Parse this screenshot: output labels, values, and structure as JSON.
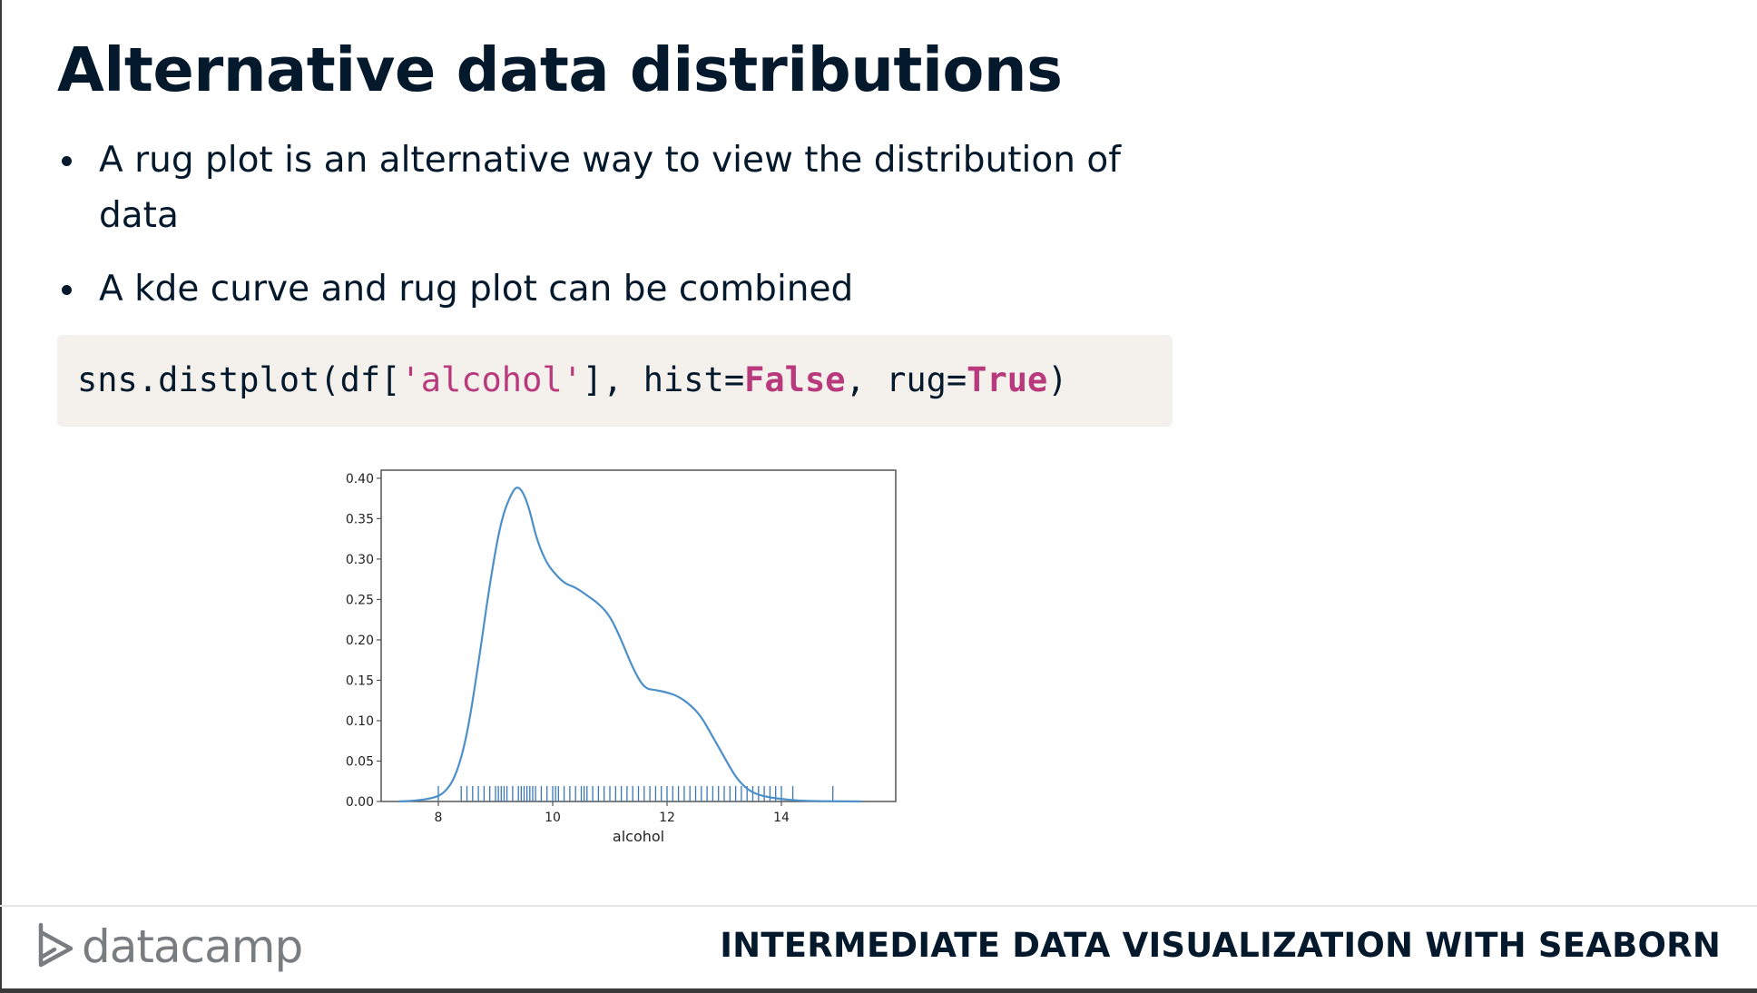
{
  "slide": {
    "title": "Alternative data distributions",
    "bullets": [
      "A rug plot is an alternative way to view the distribution of data",
      "A kde curve and rug plot can be combined"
    ]
  },
  "code": {
    "prefix": "sns.distplot(df[",
    "string": "'alcohol'",
    "middle": "], hist=",
    "kw1": "False",
    "middle2": ", rug=",
    "kw2": "True",
    "suffix": ")"
  },
  "footer": {
    "logo_text": "datacamp",
    "course_title": "INTERMEDIATE DATA VISUALIZATION WITH SEABORN"
  },
  "colors": {
    "accent_code": "#b83a7d",
    "curve": "#4c8fc9",
    "rug": "#3a78b8",
    "text": "#05192d"
  },
  "chart_data": {
    "type": "line",
    "xlabel": "alcohol",
    "ylabel": "",
    "xlim": [
      7.0,
      16.0
    ],
    "ylim": [
      0.0,
      0.41
    ],
    "xticks": [
      8,
      10,
      12,
      14
    ],
    "yticks": [
      0.0,
      0.05,
      0.1,
      0.15,
      0.2,
      0.25,
      0.3,
      0.35,
      0.4
    ],
    "ytick_labels": [
      "0.00",
      "0.05",
      "0.10",
      "0.15",
      "0.20",
      "0.25",
      "0.30",
      "0.35",
      "0.40"
    ],
    "series": [
      {
        "x": [
          7.3,
          7.6,
          7.9,
          8.1,
          8.3,
          8.5,
          8.7,
          8.9,
          9.1,
          9.3,
          9.4,
          9.5,
          9.6,
          9.7,
          9.8,
          9.9,
          10.0,
          10.2,
          10.4,
          10.6,
          10.8,
          11.0,
          11.2,
          11.4,
          11.6,
          11.8,
          12.0,
          12.2,
          12.4,
          12.6,
          12.8,
          13.0,
          13.2,
          13.4,
          13.6,
          13.8,
          14.0,
          14.3,
          14.6,
          15.0,
          15.4
        ],
        "y": [
          0.0,
          0.001,
          0.004,
          0.01,
          0.03,
          0.08,
          0.17,
          0.27,
          0.35,
          0.385,
          0.39,
          0.38,
          0.36,
          0.33,
          0.31,
          0.295,
          0.285,
          0.27,
          0.265,
          0.255,
          0.245,
          0.23,
          0.2,
          0.165,
          0.14,
          0.138,
          0.135,
          0.13,
          0.12,
          0.105,
          0.08,
          0.055,
          0.03,
          0.015,
          0.008,
          0.005,
          0.003,
          0.001,
          0.0005,
          0.0002,
          0.0
        ]
      }
    ],
    "rug_x": [
      8.0,
      8.4,
      8.5,
      8.6,
      8.7,
      8.8,
      8.9,
      9.0,
      9.05,
      9.1,
      9.15,
      9.2,
      9.3,
      9.4,
      9.45,
      9.5,
      9.55,
      9.6,
      9.65,
      9.7,
      9.8,
      9.9,
      10.0,
      10.05,
      10.1,
      10.2,
      10.3,
      10.4,
      10.5,
      10.55,
      10.6,
      10.7,
      10.8,
      10.9,
      11.0,
      11.1,
      11.2,
      11.3,
      11.4,
      11.5,
      11.6,
      11.7,
      11.8,
      11.9,
      12.0,
      12.1,
      12.2,
      12.3,
      12.4,
      12.5,
      12.6,
      12.7,
      12.8,
      12.9,
      13.0,
      13.1,
      13.2,
      13.3,
      13.4,
      13.5,
      13.6,
      13.7,
      13.8,
      13.9,
      14.0,
      14.2,
      14.9
    ]
  }
}
